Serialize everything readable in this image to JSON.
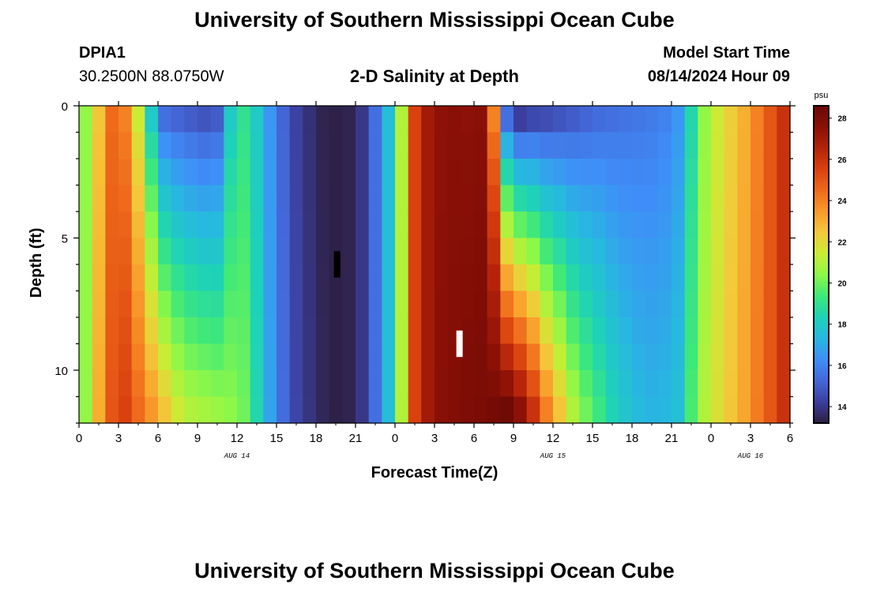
{
  "page": {
    "title_top": "University of Southern Mississippi Ocean Cube",
    "title_bottom": "University of Southern Mississippi Ocean Cube",
    "station_id": "DPIA1",
    "coords": "30.2500N  88.0750W",
    "plot_title": "2-D Salinity at Depth",
    "model_start_label": "Model Start Time",
    "model_start_value": "08/14/2024 Hour 09"
  },
  "chart_data": {
    "type": "heatmap",
    "xlabel": "Forecast Time(Z)",
    "ylabel": "Depth (ft)",
    "x_tick_labels": [
      "0",
      "3",
      "6",
      "9",
      "12",
      "15",
      "18",
      "21",
      "0",
      "3",
      "6",
      "9",
      "12",
      "15",
      "18",
      "21",
      "0",
      "3",
      "6"
    ],
    "date_labels": [
      {
        "text": "AUG 14",
        "at_tick": 4
      },
      {
        "text": "AUG 15",
        "at_tick": 12
      },
      {
        "text": "AUG 16",
        "at_tick": 17
      }
    ],
    "x_hours_range": [
      0,
      54
    ],
    "y_tick_labels": [
      "0",
      "5",
      "10"
    ],
    "ylim": [
      0,
      12
    ],
    "y_inverted": true,
    "depth_levels": 12,
    "time_steps": 54,
    "colorbar": {
      "unit": "psu",
      "range": [
        13.2,
        28.6
      ],
      "tick_values": [
        14,
        16,
        18,
        20,
        22,
        24,
        26,
        28
      ],
      "tick_labels": [
        "14",
        "16",
        "18",
        "20",
        "22",
        "24",
        "26",
        "28"
      ],
      "colormap": [
        "#2d1e3e",
        "#3b3f9e",
        "#4467d8",
        "#3f8ef8",
        "#27b8e0",
        "#1ed2b8",
        "#3ee87a",
        "#8cf848",
        "#c9ed34",
        "#f3c93a",
        "#f99a2a",
        "#ef6a1b",
        "#d9410f",
        "#b4230a",
        "#8a1006",
        "#6a0805"
      ]
    },
    "salinity_profile": {
      "columns": [
        {
          "h": 0,
          "top": 20.5,
          "bottom": 20.5
        },
        {
          "h": 1,
          "top": 22.5,
          "bottom": 23
        },
        {
          "h": 2,
          "top": 24.5,
          "bottom": 25
        },
        {
          "h": 3,
          "top": 24,
          "bottom": 25.5
        },
        {
          "h": 4,
          "top": 21.5,
          "bottom": 24.5
        },
        {
          "h": 5,
          "top": 18,
          "bottom": 23.5
        },
        {
          "h": 6,
          "top": 15.5,
          "bottom": 22.5
        },
        {
          "h": 7,
          "top": 15.2,
          "bottom": 21.5
        },
        {
          "h": 8,
          "top": 15,
          "bottom": 21
        },
        {
          "h": 9,
          "top": 14.8,
          "bottom": 20.8
        },
        {
          "h": 10,
          "top": 15,
          "bottom": 20.6
        },
        {
          "h": 11,
          "top": 18,
          "bottom": 20.4
        },
        {
          "h": 12,
          "top": 19,
          "bottom": 20
        },
        {
          "h": 13,
          "top": 18,
          "bottom": 18.5
        },
        {
          "h": 14,
          "top": 16.5,
          "bottom": 16.8
        },
        {
          "h": 15,
          "top": 15.2,
          "bottom": 15.4
        },
        {
          "h": 16,
          "top": 14.3,
          "bottom": 14.4
        },
        {
          "h": 17,
          "top": 13.8,
          "bottom": 13.9
        },
        {
          "h": 18,
          "top": 13.4,
          "bottom": 13.5
        },
        {
          "h": 19,
          "top": 13.3,
          "bottom": 13.3
        },
        {
          "h": 20,
          "top": 13.4,
          "bottom": 13.4
        },
        {
          "h": 21,
          "top": 14,
          "bottom": 14
        },
        {
          "h": 22,
          "top": 15.5,
          "bottom": 15.5
        },
        {
          "h": 23,
          "top": 17.5,
          "bottom": 17.5
        },
        {
          "h": 24,
          "top": 21,
          "bottom": 21
        },
        {
          "h": 25,
          "top": 25.5,
          "bottom": 25.5
        },
        {
          "h": 26,
          "top": 27,
          "bottom": 27
        },
        {
          "h": 27,
          "top": 27.5,
          "bottom": 27.6
        },
        {
          "h": 28,
          "top": 27.6,
          "bottom": 27.8
        },
        {
          "h": 29,
          "top": 27.5,
          "bottom": 28
        },
        {
          "h": 30,
          "top": 27.6,
          "bottom": 28.1
        },
        {
          "h": 31,
          "top": 24,
          "bottom": 28.2
        },
        {
          "h": 32,
          "top": 15.5,
          "bottom": 28.4
        },
        {
          "h": 33,
          "top": 14.2,
          "bottom": 27.5
        },
        {
          "h": 34,
          "top": 14.5,
          "bottom": 26
        },
        {
          "h": 35,
          "top": 14.6,
          "bottom": 24
        },
        {
          "h": 36,
          "top": 14.8,
          "bottom": 22.5
        },
        {
          "h": 37,
          "top": 15,
          "bottom": 21
        },
        {
          "h": 38,
          "top": 15.2,
          "bottom": 20
        },
        {
          "h": 39,
          "top": 15.4,
          "bottom": 19.2
        },
        {
          "h": 40,
          "top": 15.5,
          "bottom": 18.4
        },
        {
          "h": 41,
          "top": 15.6,
          "bottom": 17.8
        },
        {
          "h": 42,
          "top": 15.7,
          "bottom": 17.4
        },
        {
          "h": 43,
          "top": 15.8,
          "bottom": 17.2
        },
        {
          "h": 44,
          "top": 16,
          "bottom": 17.3
        },
        {
          "h": 45,
          "top": 16.5,
          "bottom": 17.6
        },
        {
          "h": 46,
          "top": 18.5,
          "bottom": 19.5
        },
        {
          "h": 47,
          "top": 20.5,
          "bottom": 21
        },
        {
          "h": 48,
          "top": 21.5,
          "bottom": 21.8
        },
        {
          "h": 49,
          "top": 22.3,
          "bottom": 22.5
        },
        {
          "h": 50,
          "top": 23,
          "bottom": 23.2
        },
        {
          "h": 51,
          "top": 24,
          "bottom": 24.1
        },
        {
          "h": 52,
          "top": 25,
          "bottom": 25
        },
        {
          "h": 53,
          "top": 26,
          "bottom": 26
        }
      ]
    },
    "markers": [
      {
        "color": "#000000",
        "hour": 19.6,
        "depth_from": 5.5,
        "depth_to": 6.5
      },
      {
        "color": "#ffffff",
        "hour": 28.9,
        "depth_from": 8.5,
        "depth_to": 9.5
      }
    ]
  }
}
